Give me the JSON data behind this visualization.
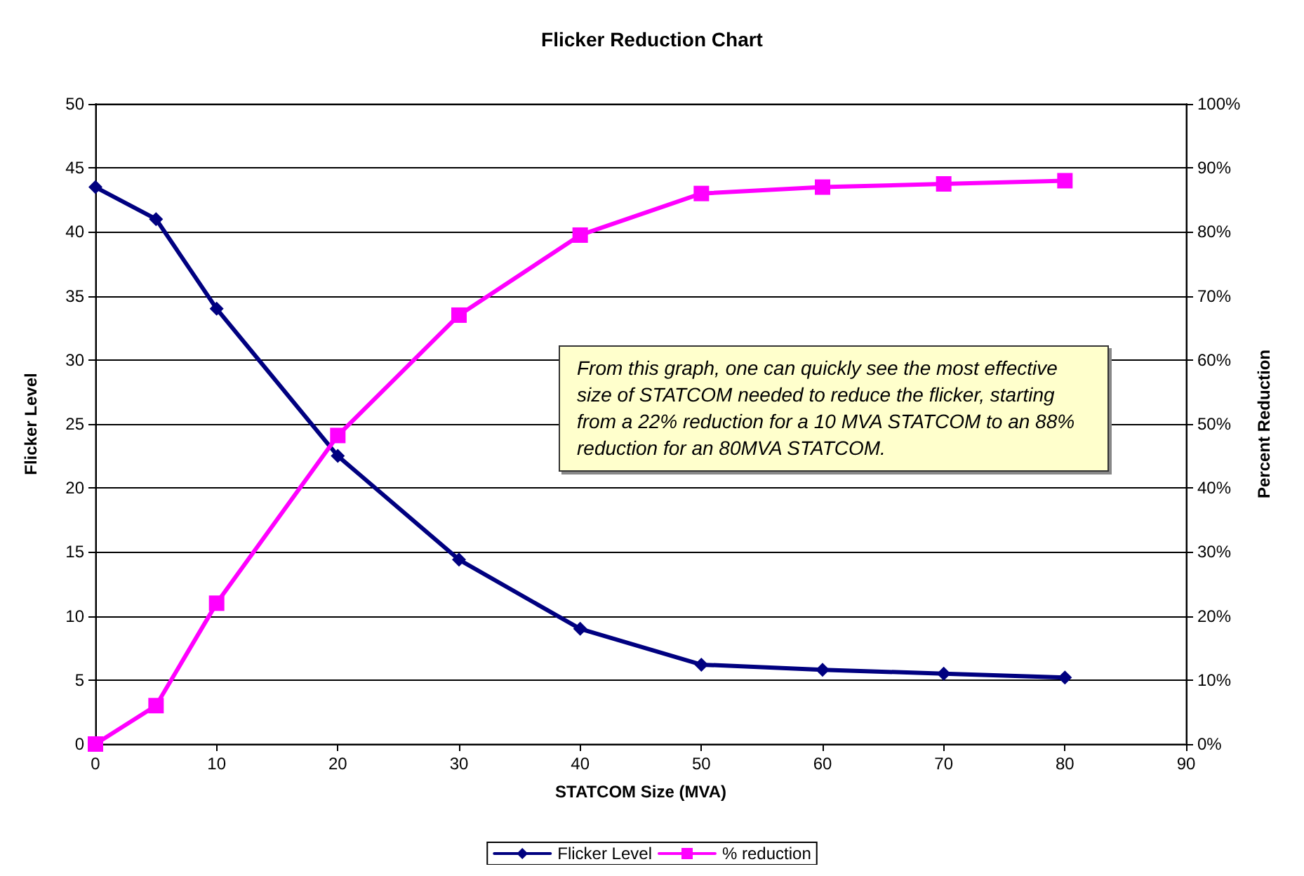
{
  "chart_data": {
    "type": "line",
    "title": "Flicker Reduction Chart",
    "xlabel": "STATCOM Size (MVA)",
    "ylabel": "Flicker Level",
    "y2label": "Percent Reduction",
    "x": [
      0,
      5,
      10,
      20,
      30,
      40,
      50,
      60,
      70,
      80
    ],
    "series": [
      {
        "name": "Flicker Level",
        "color": "#000080",
        "marker": "diamond",
        "values": [
          43.5,
          41,
          34,
          22.5,
          14.4,
          9,
          6.2,
          5.8,
          5.5,
          5.2
        ]
      },
      {
        "name": "% reduction",
        "color": "#ff00ff",
        "marker": "square",
        "axis": "y2",
        "values": [
          0,
          6,
          22,
          48.2,
          67,
          79.5,
          86,
          87,
          87.5,
          88
        ]
      }
    ],
    "xlim": [
      0,
      90
    ],
    "xticks": [
      0,
      10,
      20,
      30,
      40,
      50,
      60,
      70,
      80,
      90
    ],
    "ylim": [
      0,
      50
    ],
    "yticks": [
      0,
      5,
      10,
      15,
      20,
      25,
      30,
      35,
      40,
      45,
      50
    ],
    "y2lim": [
      0,
      100
    ],
    "y2ticks": [
      {
        "value": 0,
        "label": "0%"
      },
      {
        "value": 10,
        "label": "10%"
      },
      {
        "value": 20,
        "label": "20%"
      },
      {
        "value": 30,
        "label": "30%"
      },
      {
        "value": 40,
        "label": "40%"
      },
      {
        "value": 50,
        "label": "50%"
      },
      {
        "value": 60,
        "label": "60%"
      },
      {
        "value": 70,
        "label": "70%"
      },
      {
        "value": 80,
        "label": "80%"
      },
      {
        "value": 90,
        "label": "90%"
      },
      {
        "value": 100,
        "label": "100%"
      }
    ],
    "annotations": [
      "From this graph, one can quickly see the most effective size of STATCOM needed to reduce the flicker, starting from a 22% reduction for a 10 MVA STATCOM to an 88% reduction for an 80MVA STATCOM."
    ],
    "grid": "y",
    "legend": "bottom",
    "line_style": "solid"
  }
}
